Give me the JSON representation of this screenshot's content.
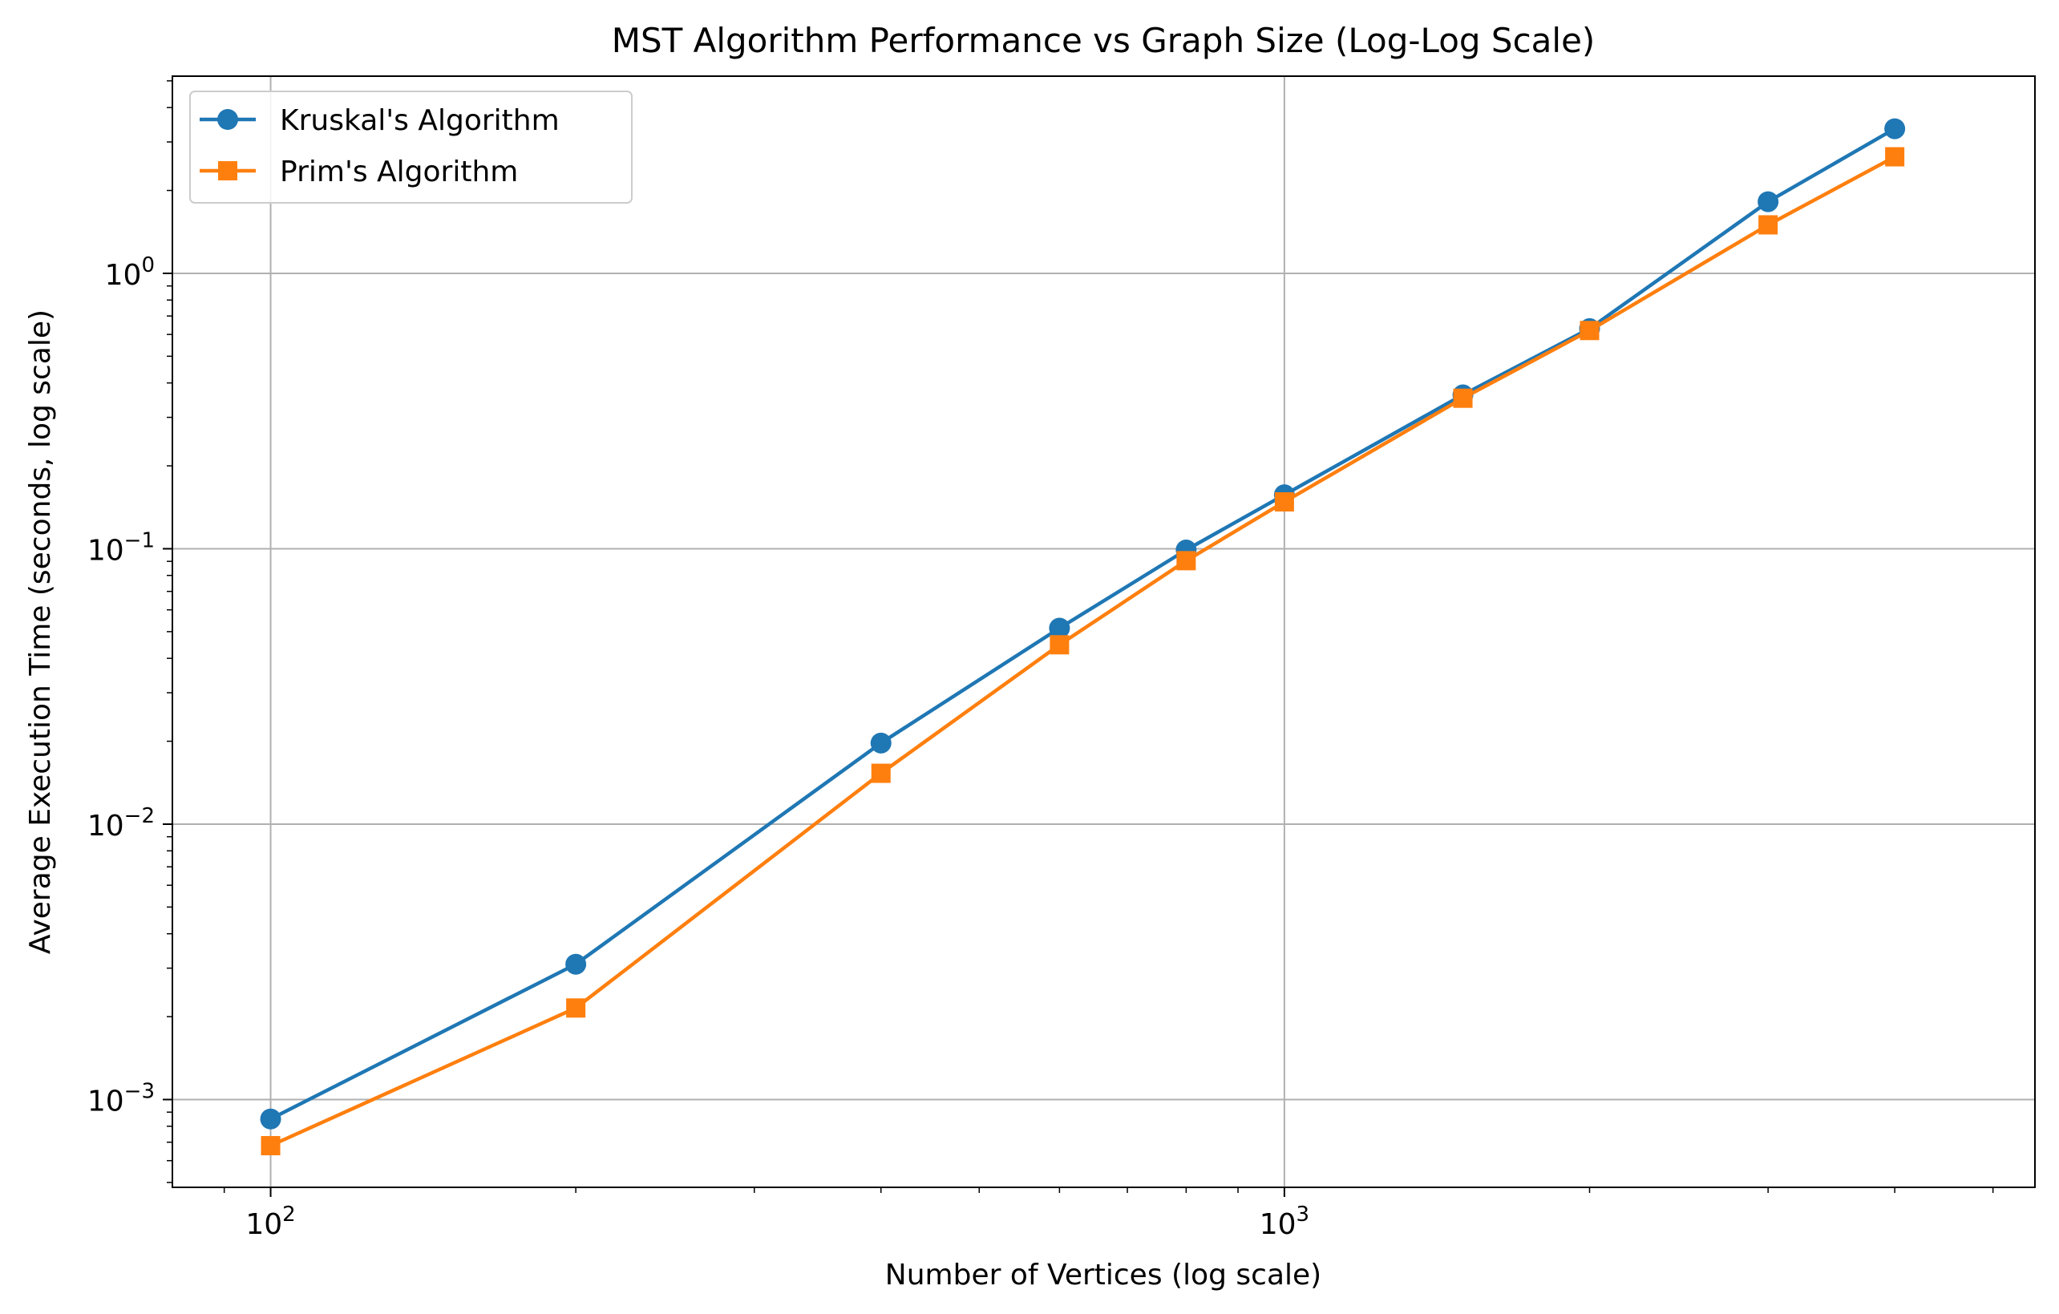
{
  "chart_data": {
    "type": "line",
    "title": "MST Algorithm Performance vs Graph Size (Log-Log Scale)",
    "xlabel": "Number of Vertices (log scale)",
    "ylabel": "Average Execution Time (seconds, log scale)",
    "x_scale": "log",
    "y_scale": "log",
    "xlim": [
      80,
      5500
    ],
    "ylim": [
      0.00048,
      5.2
    ],
    "x": [
      100,
      200,
      400,
      600,
      800,
      1000,
      1500,
      2000,
      3000,
      4000
    ],
    "x_ticks": [
      {
        "value": 100,
        "base": "10",
        "exp": "2"
      },
      {
        "value": 1000,
        "base": "10",
        "exp": "3"
      }
    ],
    "y_ticks": [
      {
        "value": 0.001,
        "base": "10",
        "exp": "−3"
      },
      {
        "value": 0.01,
        "base": "10",
        "exp": "−2"
      },
      {
        "value": 0.1,
        "base": "10",
        "exp": "−1"
      },
      {
        "value": 1,
        "base": "10",
        "exp": "0"
      }
    ],
    "grid": true,
    "legend_position": "upper-left",
    "series": [
      {
        "name": "Kruskal's Algorithm",
        "color": "#1f77b4",
        "marker": "circle",
        "values": [
          0.00085,
          0.0031,
          0.0197,
          0.0515,
          0.099,
          0.157,
          0.362,
          0.63,
          1.82,
          3.35
        ]
      },
      {
        "name": "Prim's Algorithm",
        "color": "#ff7f0e",
        "marker": "square",
        "values": [
          0.00068,
          0.00215,
          0.0153,
          0.0448,
          0.0905,
          0.148,
          0.352,
          0.62,
          1.5,
          2.65
        ]
      }
    ]
  }
}
